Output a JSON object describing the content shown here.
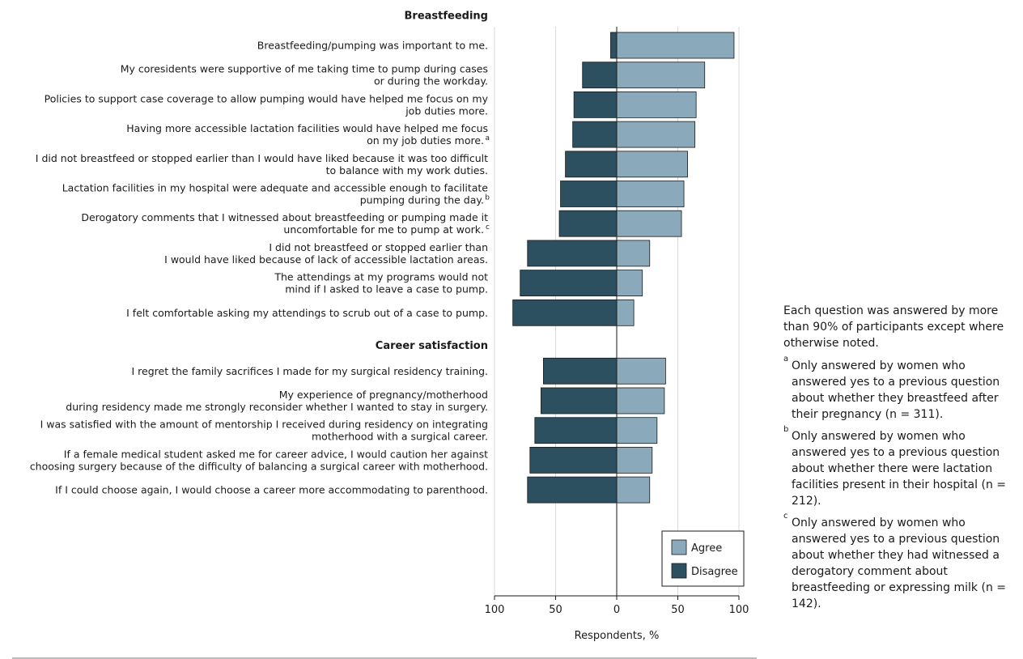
{
  "chart_data": {
    "type": "bar",
    "orientation": "horizontal-diverging",
    "xlabel": "Respondents, %",
    "xlim": [
      -100,
      100
    ],
    "xticks": [
      {
        "value": -100,
        "label": "100"
      },
      {
        "value": -50,
        "label": "50"
      },
      {
        "value": 0,
        "label": "0"
      },
      {
        "value": 50,
        "label": "50"
      },
      {
        "value": 100,
        "label": "100"
      }
    ],
    "legend": {
      "position": "bottom-right",
      "entries": [
        {
          "name": "Agree",
          "color": "#8aaabb"
        },
        {
          "name": "Disagree",
          "color": "#2c5060"
        }
      ]
    },
    "sections": [
      {
        "title": "Breastfeeding",
        "items": [
          {
            "lines": [
              "Breastfeeding/pumping was important to me."
            ],
            "sup": "",
            "agree": 96,
            "disagree": 5
          },
          {
            "lines": [
              "My coresidents were supportive of me taking time to pump during cases",
              "or during the workday."
            ],
            "sup": "",
            "agree": 72,
            "disagree": 28
          },
          {
            "lines": [
              "Policies to support case coverage to allow pumping would have helped me focus on my",
              "job duties more."
            ],
            "sup": "",
            "agree": 65,
            "disagree": 35
          },
          {
            "lines": [
              "Having more accessible lactation facilities would have helped me focus",
              "on my job duties more."
            ],
            "sup": "a",
            "agree": 64,
            "disagree": 36
          },
          {
            "lines": [
              "I did not breastfeed or stopped earlier than I would have liked because it was too difficult",
              "to balance with my work duties."
            ],
            "sup": "",
            "agree": 58,
            "disagree": 42
          },
          {
            "lines": [
              "Lactation facilities in my hospital were adequate and accessible enough to facilitate",
              "pumping during the day."
            ],
            "sup": "b",
            "agree": 55,
            "disagree": 46
          },
          {
            "lines": [
              "Derogatory comments that I witnessed about breastfeeding or pumping made it",
              "uncomfortable for me to pump at work."
            ],
            "sup": "c",
            "agree": 53,
            "disagree": 47
          },
          {
            "lines": [
              "I did not breastfeed or stopped earlier than",
              "I would have liked because of lack of accessible lactation areas."
            ],
            "sup": "",
            "agree": 27,
            "disagree": 73
          },
          {
            "lines": [
              "The attendings at my programs would not",
              "mind if I asked to leave a case to pump."
            ],
            "sup": "",
            "agree": 21,
            "disagree": 79
          },
          {
            "lines": [
              "I felt comfortable asking my attendings to scrub out of a case to pump."
            ],
            "sup": "",
            "agree": 14,
            "disagree": 85
          }
        ]
      },
      {
        "title": "Career satisfaction",
        "items": [
          {
            "lines": [
              "I regret the family sacrifices I made for my surgical residency training."
            ],
            "sup": "",
            "agree": 40,
            "disagree": 60
          },
          {
            "lines": [
              "My experience of pregnancy/motherhood",
              "during residency made me strongly reconsider whether I wanted to stay in surgery."
            ],
            "sup": "",
            "agree": 39,
            "disagree": 62
          },
          {
            "lines": [
              "I was satisfied with the amount of mentorship I received during residency on integrating",
              "motherhood with a surgical career."
            ],
            "sup": "",
            "agree": 33,
            "disagree": 67
          },
          {
            "lines": [
              "If a female medical student asked me for career advice, I would caution her against",
              "choosing surgery because of the difficulty of balancing a surgical career with motherhood."
            ],
            "sup": "",
            "agree": 29,
            "disagree": 71
          },
          {
            "lines": [
              "If I could choose again, I would choose a career more accommodating to parenthood."
            ],
            "sup": "",
            "agree": 27,
            "disagree": 73
          }
        ]
      }
    ]
  },
  "notes": {
    "intro": "Each question was answered by more than 90% of participants except where otherwise noted.",
    "footnotes": [
      {
        "mark": "a",
        "text": "Only answered by women who answered yes to a previous question about whether they breastfeed after their pregnancy (n = 311)."
      },
      {
        "mark": "b",
        "text": "Only answered by women who answered yes to a previous question about whether there were lactation facilities present in their hospital (n = 212)."
      },
      {
        "mark": "c",
        "text": "Only answered by women who answered yes to a previous question about whether they had witnessed a derogatory comment about breastfeeding or expressing milk (n = 142)."
      }
    ]
  }
}
